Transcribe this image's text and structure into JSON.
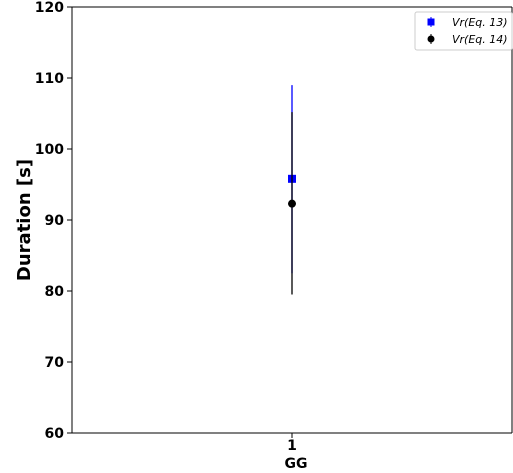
{
  "chart_data": {
    "type": "scatter",
    "xlabel": "GG",
    "ylabel": "Duration [s]",
    "ylim": [
      60,
      120
    ],
    "yticks": [
      "60",
      "70",
      "80",
      "90",
      "100",
      "110",
      "120"
    ],
    "xticks": [
      "1"
    ],
    "grid": false,
    "legend_position": "top-right",
    "series": [
      {
        "name": "Vr(Eq. 13)",
        "marker": "square",
        "color": "#0000ff",
        "x": [
          1
        ],
        "y": [
          95.8
        ],
        "yerr_low": [
          82.5
        ],
        "yerr_high": [
          109.0
        ]
      },
      {
        "name": "Vr(Eq. 14)",
        "marker": "circle",
        "color": "#000000",
        "x": [
          1
        ],
        "y": [
          92.3
        ],
        "yerr_low": [
          79.5
        ],
        "yerr_high": [
          105.2
        ]
      }
    ]
  }
}
